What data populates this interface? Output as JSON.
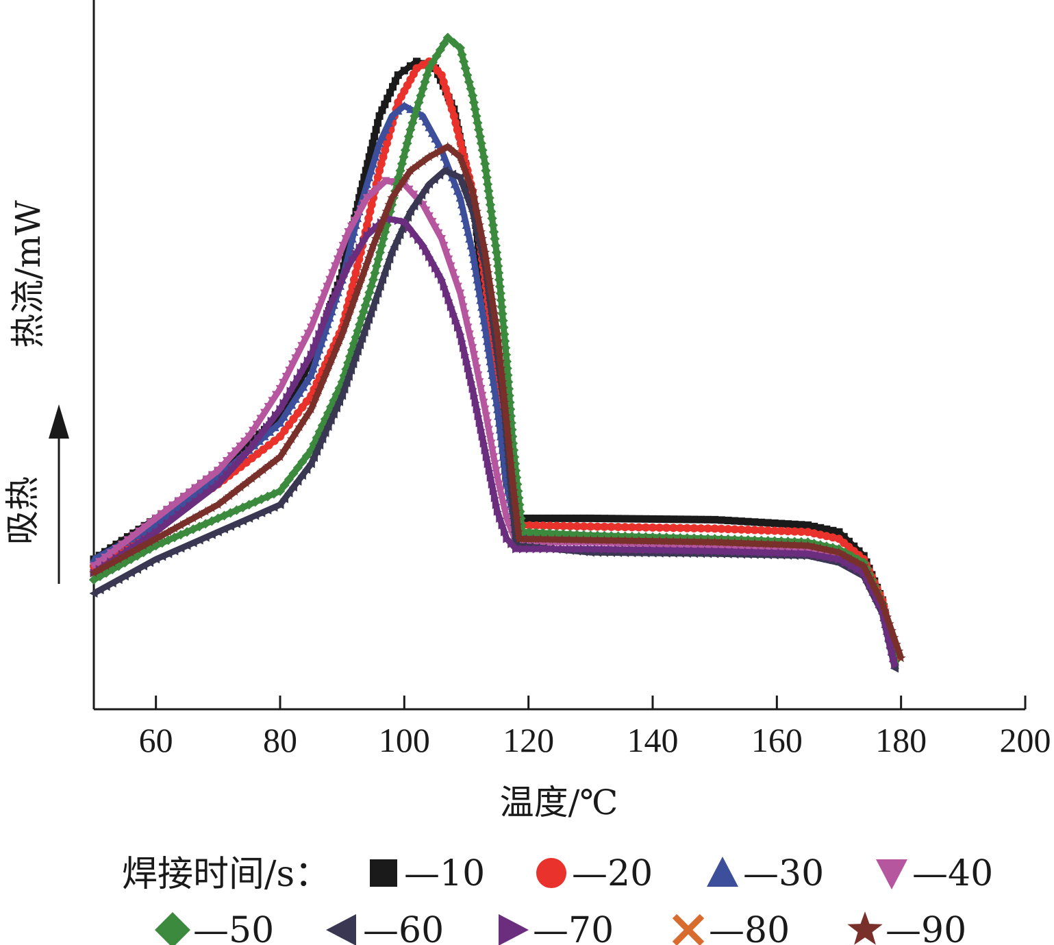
{
  "chart_data": {
    "type": "scatter",
    "xlabel": "温度/℃",
    "ylabel": "热流/mW",
    "endotherm_label": "吸热",
    "xlim": [
      50,
      200
    ],
    "ylim": [
      0,
      100
    ],
    "x_ticks": [
      60,
      80,
      100,
      120,
      140,
      160,
      180,
      200
    ],
    "y_ticks": [],
    "legend_title": "焊接时间/s：",
    "legend_position": "bottom",
    "series": [
      {
        "name": "10",
        "color": "#1a1a1a",
        "marker": "square",
        "points": [
          [
            50,
            22
          ],
          [
            60,
            28
          ],
          [
            70,
            35
          ],
          [
            80,
            43
          ],
          [
            85,
            51
          ],
          [
            90,
            64
          ],
          [
            93,
            76
          ],
          [
            96,
            87
          ],
          [
            99,
            93
          ],
          [
            102,
            95
          ],
          [
            105,
            94
          ],
          [
            108,
            88
          ],
          [
            111,
            75
          ],
          [
            113,
            60
          ],
          [
            115,
            45
          ],
          [
            116.5,
            33
          ],
          [
            118,
            28
          ],
          [
            130,
            28
          ],
          [
            150,
            27.8
          ],
          [
            165,
            27
          ],
          [
            170,
            26
          ],
          [
            174,
            22.5
          ],
          [
            177,
            16
          ],
          [
            179,
            7
          ]
        ]
      },
      {
        "name": "20",
        "color": "#e8322b",
        "marker": "circle",
        "points": [
          [
            50,
            21
          ],
          [
            60,
            27
          ],
          [
            70,
            33
          ],
          [
            80,
            40
          ],
          [
            85,
            46
          ],
          [
            90,
            56
          ],
          [
            93,
            67
          ],
          [
            96,
            79
          ],
          [
            99,
            89
          ],
          [
            102,
            94
          ],
          [
            104,
            95
          ],
          [
            106,
            93
          ],
          [
            108,
            87
          ],
          [
            111,
            76
          ],
          [
            113,
            63
          ],
          [
            115,
            49
          ],
          [
            116.5,
            36
          ],
          [
            118,
            27
          ],
          [
            130,
            26.8
          ],
          [
            150,
            26.5
          ],
          [
            165,
            26
          ],
          [
            170,
            25
          ],
          [
            174,
            22
          ],
          [
            177,
            16
          ],
          [
            179,
            7.5
          ]
        ]
      },
      {
        "name": "30",
        "color": "#3d4e9b",
        "marker": "triangle-up",
        "points": [
          [
            50,
            22
          ],
          [
            60,
            27
          ],
          [
            70,
            34
          ],
          [
            80,
            42
          ],
          [
            85,
            49
          ],
          [
            90,
            63
          ],
          [
            93,
            74
          ],
          [
            96,
            83
          ],
          [
            98,
            87
          ],
          [
            100,
            88.5
          ],
          [
            103,
            87
          ],
          [
            106,
            82
          ],
          [
            109,
            75
          ],
          [
            111,
            67
          ],
          [
            113,
            56
          ],
          [
            115,
            44
          ],
          [
            116.5,
            33
          ],
          [
            118,
            26
          ],
          [
            130,
            25.5
          ],
          [
            150,
            25
          ],
          [
            165,
            24.5
          ],
          [
            170,
            23.5
          ],
          [
            174,
            21
          ],
          [
            177,
            15
          ],
          [
            179,
            6.5
          ]
        ]
      },
      {
        "name": "40",
        "color": "#b5569f",
        "marker": "triangle-down",
        "points": [
          [
            50,
            21
          ],
          [
            60,
            28
          ],
          [
            70,
            35
          ],
          [
            75,
            40
          ],
          [
            80,
            47
          ],
          [
            85,
            56
          ],
          [
            88,
            63
          ],
          [
            91,
            70
          ],
          [
            94,
            75
          ],
          [
            97,
            77.5
          ],
          [
            100,
            77
          ],
          [
            103,
            74
          ],
          [
            106,
            69
          ],
          [
            109,
            61
          ],
          [
            111,
            53
          ],
          [
            113,
            44
          ],
          [
            115,
            34
          ],
          [
            116.5,
            28
          ],
          [
            118,
            24.5
          ],
          [
            130,
            24.5
          ],
          [
            150,
            24
          ],
          [
            165,
            23.5
          ],
          [
            170,
            22.5
          ],
          [
            174,
            20.5
          ],
          [
            177,
            15
          ],
          [
            179,
            6.5
          ]
        ]
      },
      {
        "name": "50",
        "color": "#3b8a3e",
        "marker": "diamond",
        "points": [
          [
            50,
            19
          ],
          [
            60,
            24
          ],
          [
            70,
            28
          ],
          [
            80,
            32
          ],
          [
            85,
            38
          ],
          [
            90,
            48
          ],
          [
            95,
            63
          ],
          [
            98,
            74
          ],
          [
            101,
            85
          ],
          [
            104,
            94
          ],
          [
            107,
            98.5
          ],
          [
            109,
            97
          ],
          [
            111,
            90
          ],
          [
            113,
            80
          ],
          [
            115,
            66
          ],
          [
            116.5,
            51
          ],
          [
            117.5,
            39
          ],
          [
            119,
            26
          ],
          [
            130,
            25.5
          ],
          [
            150,
            25
          ],
          [
            165,
            24.5
          ],
          [
            170,
            23.5
          ],
          [
            174,
            21.5
          ],
          [
            177,
            15.5
          ],
          [
            179,
            7
          ]
        ]
      },
      {
        "name": "60",
        "color": "#3a3752",
        "marker": "triangle-left",
        "points": [
          [
            50,
            17
          ],
          [
            60,
            22
          ],
          [
            70,
            26
          ],
          [
            80,
            30
          ],
          [
            85,
            36
          ],
          [
            90,
            46
          ],
          [
            95,
            59
          ],
          [
            98,
            67
          ],
          [
            101,
            73
          ],
          [
            104,
            77
          ],
          [
            106.5,
            79
          ],
          [
            109,
            78
          ],
          [
            111,
            73
          ],
          [
            113,
            65
          ],
          [
            114.5,
            55
          ],
          [
            116,
            45
          ],
          [
            117,
            34
          ],
          [
            118,
            24
          ],
          [
            130,
            23
          ],
          [
            150,
            22.8
          ],
          [
            165,
            22.5
          ],
          [
            170,
            21.5
          ],
          [
            174,
            19.5
          ],
          [
            177,
            14
          ],
          [
            179,
            6
          ]
        ]
      },
      {
        "name": "70",
        "color": "#6b2e7e",
        "marker": "triangle-right",
        "points": [
          [
            50,
            20
          ],
          [
            60,
            26
          ],
          [
            70,
            33
          ],
          [
            75,
            38
          ],
          [
            80,
            44
          ],
          [
            85,
            52
          ],
          [
            88,
            59
          ],
          [
            91,
            65
          ],
          [
            94,
            69.5
          ],
          [
            97,
            72
          ],
          [
            100,
            71.5
          ],
          [
            103,
            68
          ],
          [
            106,
            63
          ],
          [
            109,
            55
          ],
          [
            111,
            47
          ],
          [
            113,
            38
          ],
          [
            115,
            29
          ],
          [
            116.5,
            25
          ],
          [
            118,
            23.5
          ],
          [
            130,
            23.5
          ],
          [
            150,
            23.2
          ],
          [
            165,
            22.8
          ],
          [
            170,
            22
          ],
          [
            174,
            20
          ],
          [
            177,
            14.5
          ],
          [
            179,
            6.5
          ]
        ]
      },
      {
        "name": "80",
        "color": "#d86b2e",
        "marker": "cross",
        "points": []
      },
      {
        "name": "90",
        "color": "#7a302a",
        "marker": "star",
        "points": [
          [
            50,
            20
          ],
          [
            60,
            25
          ],
          [
            70,
            30
          ],
          [
            80,
            37
          ],
          [
            85,
            44
          ],
          [
            90,
            55
          ],
          [
            95,
            68
          ],
          [
            98,
            75
          ],
          [
            101,
            79
          ],
          [
            104,
            81
          ],
          [
            107,
            82.5
          ],
          [
            109,
            81
          ],
          [
            111,
            76
          ],
          [
            113,
            67
          ],
          [
            115,
            55
          ],
          [
            116.5,
            42
          ],
          [
            117.5,
            33
          ],
          [
            118.5,
            25
          ],
          [
            130,
            24.8
          ],
          [
            150,
            24.5
          ],
          [
            165,
            24
          ],
          [
            170,
            23
          ],
          [
            174,
            21
          ],
          [
            177,
            15.5
          ],
          [
            180,
            7.5
          ]
        ]
      }
    ]
  }
}
